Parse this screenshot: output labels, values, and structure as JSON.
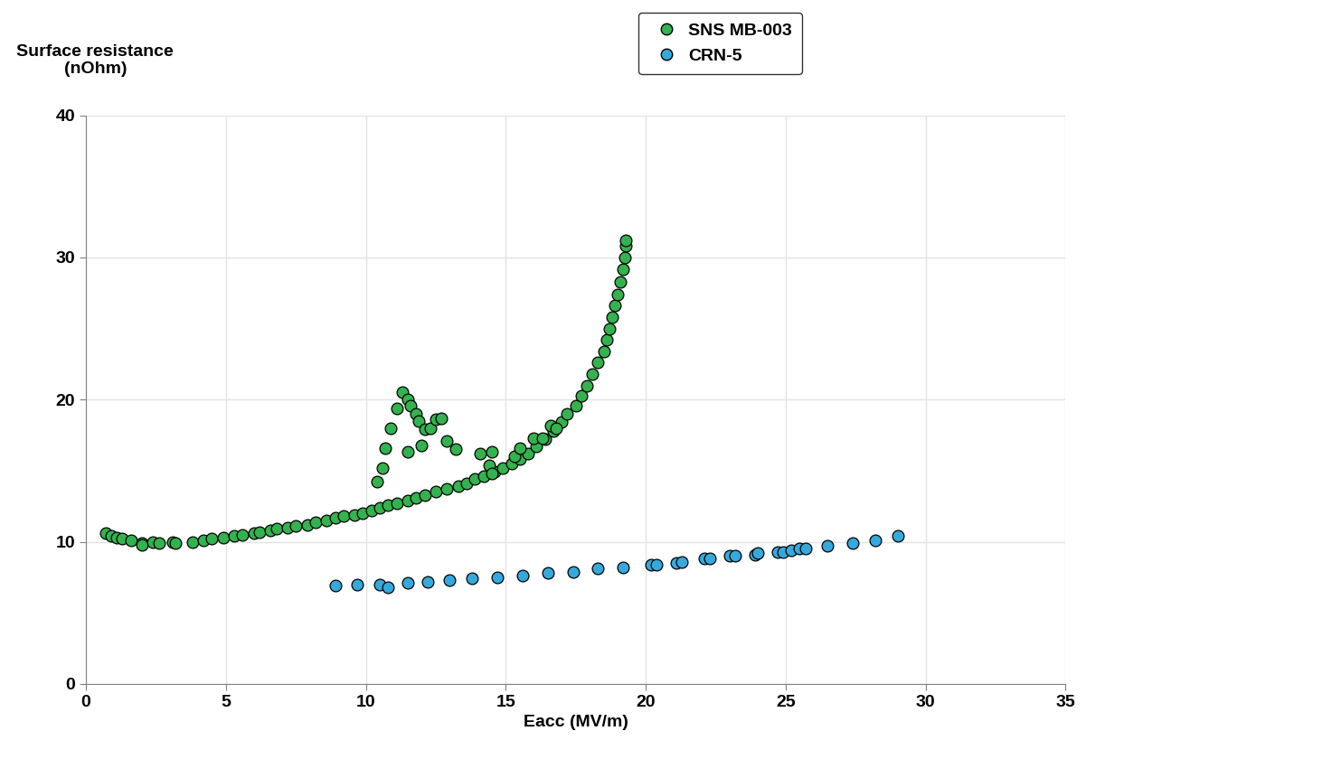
{
  "chart_data": {
    "type": "scatter",
    "x_label": "Eacc (MV/m)",
    "y_label": "Surface resistance\n(nOhm)",
    "xlim": [
      0,
      35
    ],
    "xticks": [
      0,
      5,
      10,
      15,
      20,
      25,
      30,
      35
    ],
    "ylim": [
      0,
      40
    ],
    "yticks": [
      0,
      10,
      20,
      30,
      40
    ],
    "grid": true,
    "legend": "upper center",
    "series": [
      {
        "name": "SNS MB-003",
        "color": "#33b24f",
        "marker": "o",
        "x": [
          0.7,
          0.9,
          1.1,
          1.3,
          1.6,
          2.0,
          2.0,
          2.4,
          2.6,
          3.1,
          3.2,
          3.8,
          4.2,
          4.5,
          4.9,
          5.3,
          5.6,
          6.0,
          6.2,
          6.6,
          6.8,
          7.2,
          7.5,
          7.9,
          8.2,
          8.6,
          8.9,
          9.2,
          9.6,
          9.9,
          10.2,
          10.5,
          10.8,
          11.1,
          11.5,
          11.8,
          12.1,
          12.5,
          12.9,
          13.3,
          13.6,
          13.9,
          14.2,
          14.6,
          14.9,
          15.2,
          15.5,
          15.8,
          16.1,
          16.4,
          16.7,
          17.0,
          17.2,
          17.5,
          17.7,
          17.9,
          18.1,
          18.3,
          18.5,
          18.6,
          18.7,
          18.8,
          18.9,
          19.0,
          19.1,
          19.2,
          19.25,
          19.3,
          19.3,
          10.4,
          10.6,
          10.7,
          10.9,
          11.1,
          11.3,
          11.5,
          11.6,
          11.8,
          11.9,
          12.1,
          12.3,
          11.5,
          12.0,
          12.5,
          12.7,
          12.9,
          13.2,
          14.1,
          14.5,
          14.4,
          14.5,
          15.3,
          15.5,
          16.0,
          16.3,
          16.6,
          16.8
        ],
        "values": [
          10.6,
          10.4,
          10.3,
          10.2,
          10.1,
          9.9,
          9.8,
          10.0,
          9.9,
          10.0,
          9.9,
          10.0,
          10.1,
          10.2,
          10.3,
          10.4,
          10.5,
          10.6,
          10.7,
          10.8,
          10.9,
          11.0,
          11.1,
          11.2,
          11.4,
          11.5,
          11.7,
          11.8,
          11.9,
          12.0,
          12.2,
          12.4,
          12.6,
          12.7,
          12.9,
          13.1,
          13.3,
          13.5,
          13.7,
          13.9,
          14.1,
          14.4,
          14.6,
          14.9,
          15.2,
          15.5,
          15.8,
          16.2,
          16.7,
          17.2,
          17.8,
          18.4,
          19.0,
          19.6,
          20.3,
          21.0,
          21.8,
          22.6,
          23.4,
          24.2,
          25.0,
          25.8,
          26.6,
          27.4,
          28.3,
          29.2,
          30.0,
          30.8,
          31.2,
          14.2,
          15.2,
          16.6,
          18.0,
          19.4,
          20.5,
          20.0,
          19.6,
          19.0,
          18.5,
          17.9,
          18.0,
          16.3,
          16.8,
          18.6,
          18.7,
          17.1,
          16.5,
          16.2,
          16.3,
          15.4,
          14.8,
          16.0,
          16.6,
          17.3,
          17.3,
          18.2,
          18.0
        ]
      },
      {
        "name": "CRN-5",
        "color": "#35a9dc",
        "marker": "o",
        "x": [
          8.9,
          9.7,
          10.5,
          10.8,
          11.5,
          12.2,
          13.0,
          13.8,
          14.7,
          15.6,
          16.5,
          17.4,
          18.3,
          19.2,
          20.2,
          20.4,
          21.1,
          21.3,
          22.1,
          22.3,
          23.0,
          23.2,
          23.9,
          24.0,
          24.7,
          24.9,
          25.2,
          25.5,
          25.7,
          26.5,
          27.4,
          28.2,
          29.0
        ],
        "values": [
          6.9,
          7.0,
          7.0,
          6.8,
          7.1,
          7.2,
          7.3,
          7.4,
          7.5,
          7.6,
          7.8,
          7.9,
          8.1,
          8.2,
          8.4,
          8.4,
          8.5,
          8.6,
          8.8,
          8.8,
          9.0,
          9.0,
          9.1,
          9.2,
          9.3,
          9.3,
          9.4,
          9.5,
          9.5,
          9.7,
          9.9,
          10.1,
          10.4
        ]
      }
    ]
  }
}
